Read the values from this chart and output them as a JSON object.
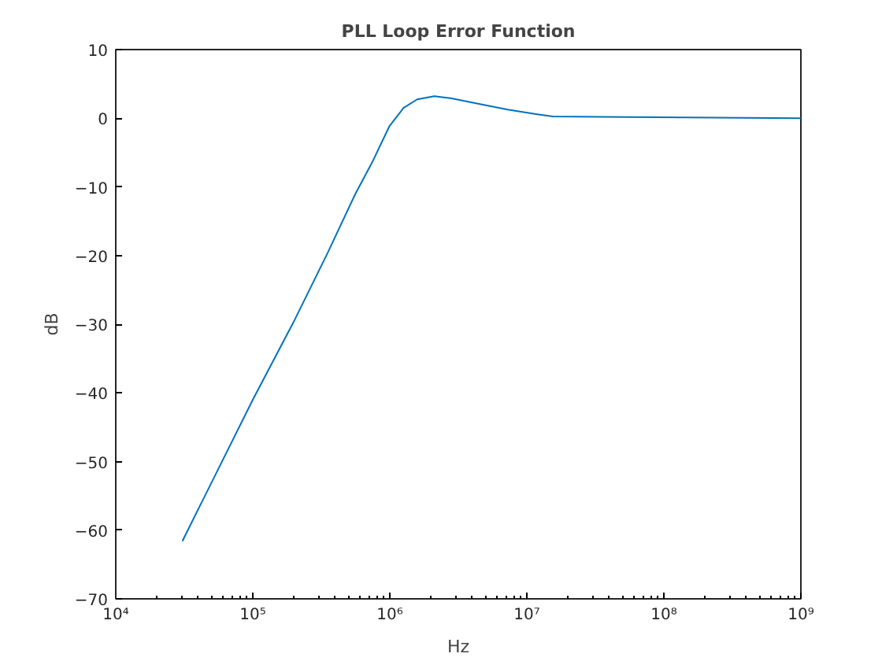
{
  "chart_data": {
    "type": "line",
    "title": "PLL Loop Error Function",
    "xlabel": "Hz",
    "ylabel": "dB",
    "log": "x",
    "grid": false,
    "xlim": [
      10000,
      1000000000
    ],
    "ylim": [
      -70,
      10
    ],
    "xticks": [
      {
        "value": 10000,
        "label": "10⁴"
      },
      {
        "value": 100000,
        "label": "10⁵"
      },
      {
        "value": 1000000,
        "label": "10⁶"
      },
      {
        "value": 10000000,
        "label": "10⁷"
      },
      {
        "value": 100000000,
        "label": "10⁸"
      },
      {
        "value": 1000000000,
        "label": "10⁹"
      }
    ],
    "yticks": [
      -70,
      -60,
      -50,
      -40,
      -30,
      -20,
      -10,
      0,
      10
    ],
    "series": [
      {
        "color": "#0072bd",
        "x": [
          30620,
          100000,
          197700,
          349100,
          561000,
          744700,
          990800,
          1259000,
          1585000,
          2113000,
          2818000,
          4467000,
          7244000,
          11640000,
          15490000,
          1000000000
        ],
        "values": [
          -61.6,
          -41,
          -29.75,
          -19.75,
          -11,
          -6.4,
          -1.2,
          1.5,
          2.75,
          3.2,
          2.9,
          2.1,
          1.25,
          0.6,
          0.25,
          0
        ]
      }
    ]
  }
}
